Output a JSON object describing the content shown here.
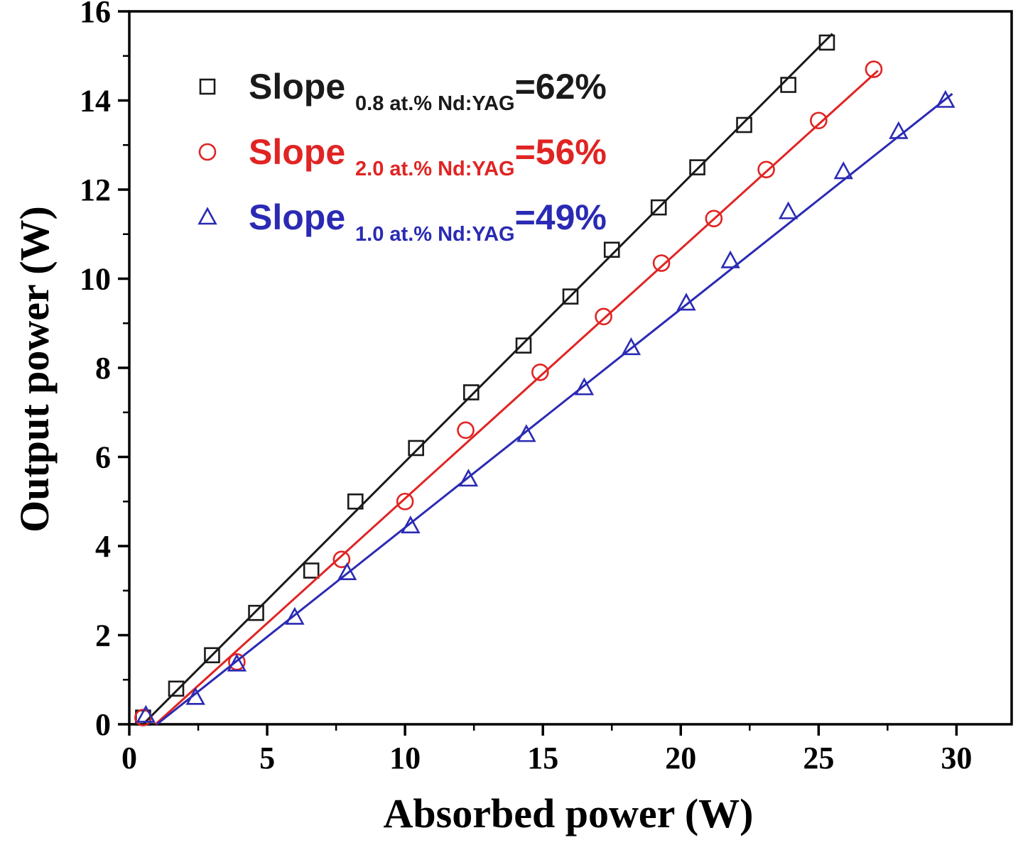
{
  "chart_data": {
    "type": "scatter",
    "title": "",
    "xlabel": "Absorbed power (W)",
    "ylabel": "Output power (W)",
    "xlim": [
      0,
      32
    ],
    "ylim": [
      0,
      16
    ],
    "xticks": [
      0,
      5,
      10,
      15,
      20,
      25,
      30
    ],
    "yticks": [
      0,
      2,
      4,
      6,
      8,
      10,
      12,
      14,
      16
    ],
    "x_minor_step": 2.5,
    "y_minor_step": 1,
    "grid": false,
    "legend_position": "top-left",
    "legend_prefix": "Slope",
    "series": [
      {
        "name": "0.8 at.% Nd:YAG",
        "subscript": "0.8 at.% Nd:YAG",
        "slope_value": "=62%",
        "slope_percent": 62,
        "color": "#1a1a1a",
        "marker": "square",
        "fit_line": {
          "x1": 0.5,
          "y1": 0.0,
          "x2": 25.5,
          "y2": 15.5
        },
        "points": [
          [
            0.5,
            0.15
          ],
          [
            1.7,
            0.8
          ],
          [
            3.0,
            1.55
          ],
          [
            4.6,
            2.5
          ],
          [
            6.6,
            3.45
          ],
          [
            8.2,
            5.0
          ],
          [
            10.4,
            6.2
          ],
          [
            12.4,
            7.45
          ],
          [
            14.3,
            8.5
          ],
          [
            16.0,
            9.6
          ],
          [
            17.5,
            10.65
          ],
          [
            19.2,
            11.6
          ],
          [
            20.6,
            12.5
          ],
          [
            22.3,
            13.45
          ],
          [
            23.9,
            14.35
          ],
          [
            25.3,
            15.3
          ]
        ]
      },
      {
        "name": "2.0 at.% Nd:YAG",
        "subscript": "2.0 at.% Nd:YAG",
        "slope_value": "=56%",
        "slope_percent": 56,
        "color": "#e02423",
        "marker": "circle",
        "fit_line": {
          "x1": 0.95,
          "y1": 0.0,
          "x2": 27.15,
          "y2": 14.67
        },
        "points": [
          [
            0.5,
            0.15
          ],
          [
            3.9,
            1.4
          ],
          [
            7.7,
            3.7
          ],
          [
            10.0,
            5.0
          ],
          [
            12.2,
            6.6
          ],
          [
            14.9,
            7.9
          ],
          [
            17.2,
            9.15
          ],
          [
            19.3,
            10.35
          ],
          [
            21.2,
            11.35
          ],
          [
            23.1,
            12.45
          ],
          [
            25.0,
            13.55
          ],
          [
            27.0,
            14.7
          ]
        ]
      },
      {
        "name": "1.0 at.% Nd:YAG",
        "subscript": "1.0 at.% Nd:YAG",
        "slope_value": "=49%",
        "slope_percent": 49,
        "color": "#2a2ab4",
        "marker": "triangle",
        "fit_line": {
          "x1": 1.0,
          "y1": 0.0,
          "x2": 29.85,
          "y2": 14.15
        },
        "points": [
          [
            0.6,
            0.2
          ],
          [
            2.4,
            0.6
          ],
          [
            3.9,
            1.35
          ],
          [
            6.0,
            2.4
          ],
          [
            7.9,
            3.4
          ],
          [
            10.2,
            4.45
          ],
          [
            12.3,
            5.5
          ],
          [
            14.4,
            6.5
          ],
          [
            16.5,
            7.55
          ],
          [
            18.2,
            8.45
          ],
          [
            20.2,
            9.45
          ],
          [
            21.8,
            10.4
          ],
          [
            23.9,
            11.5
          ],
          [
            25.9,
            12.4
          ],
          [
            27.9,
            13.3
          ],
          [
            29.6,
            14.0
          ]
        ]
      }
    ]
  }
}
